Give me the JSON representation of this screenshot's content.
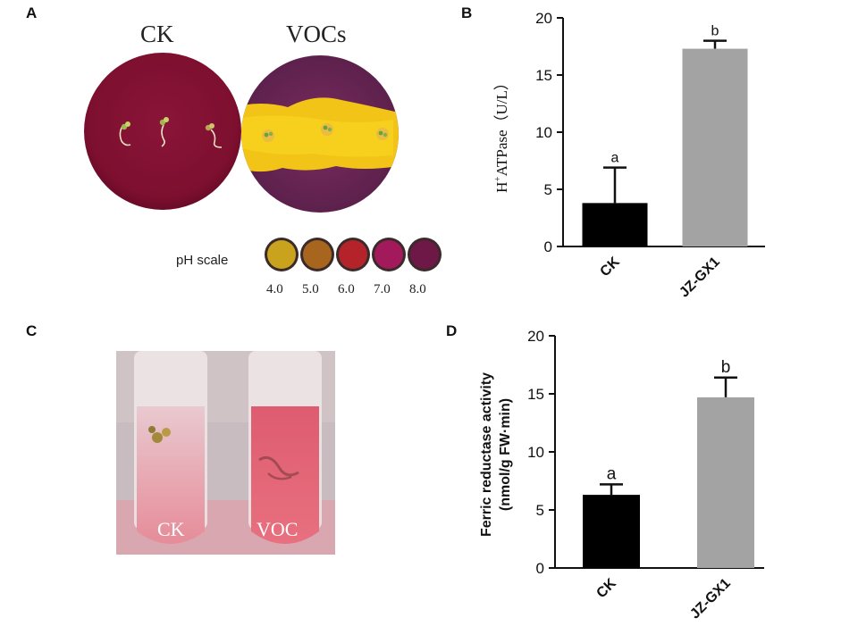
{
  "panels": {
    "a": {
      "label": "A",
      "dish_labels": [
        "CK",
        "VOCs"
      ],
      "ph_scale_label": "pH scale",
      "ph_values": [
        "4.0",
        "5.0",
        "6.0",
        "7.0",
        "8.0"
      ],
      "ph_colors": [
        "#c9a21e",
        "#a8651e",
        "#b5232a",
        "#a31a5c",
        "#6e1848"
      ]
    },
    "b": {
      "label": "B"
    },
    "c": {
      "label": "C",
      "tube_labels": [
        "CK",
        "VOC"
      ]
    },
    "d": {
      "label": "D"
    }
  },
  "chart_data": [
    {
      "panel": "B",
      "type": "bar",
      "categories": [
        "CK",
        "JZ-GX1"
      ],
      "values": [
        3.8,
        17.3
      ],
      "errors": [
        3.1,
        0.7
      ],
      "letters": [
        "a",
        "b"
      ],
      "colors": [
        "#000000",
        "#a3a3a3"
      ],
      "ylabel_main": "H",
      "ylabel_sup": "+",
      "ylabel_rest": "ATPase（U/L）",
      "ylim": [
        0,
        20
      ],
      "yticks": [
        "0",
        "5",
        "10",
        "15",
        "20"
      ],
      "ytick_values": [
        0,
        5,
        10,
        15,
        20
      ]
    },
    {
      "panel": "D",
      "type": "bar",
      "categories": [
        "CK",
        "JZ-GX1"
      ],
      "values": [
        6.3,
        14.7
      ],
      "errors": [
        0.9,
        1.7
      ],
      "letters": [
        "a",
        "b"
      ],
      "colors": [
        "#000000",
        "#a3a3a3"
      ],
      "ylabel_line1": "Ferric reductase activity",
      "ylabel_line2": "(nmol/g FW·min)",
      "ylim": [
        0,
        20
      ],
      "yticks": [
        "0",
        "5",
        "10",
        "15",
        "20"
      ],
      "ytick_values": [
        0,
        5,
        10,
        15,
        20
      ]
    }
  ]
}
